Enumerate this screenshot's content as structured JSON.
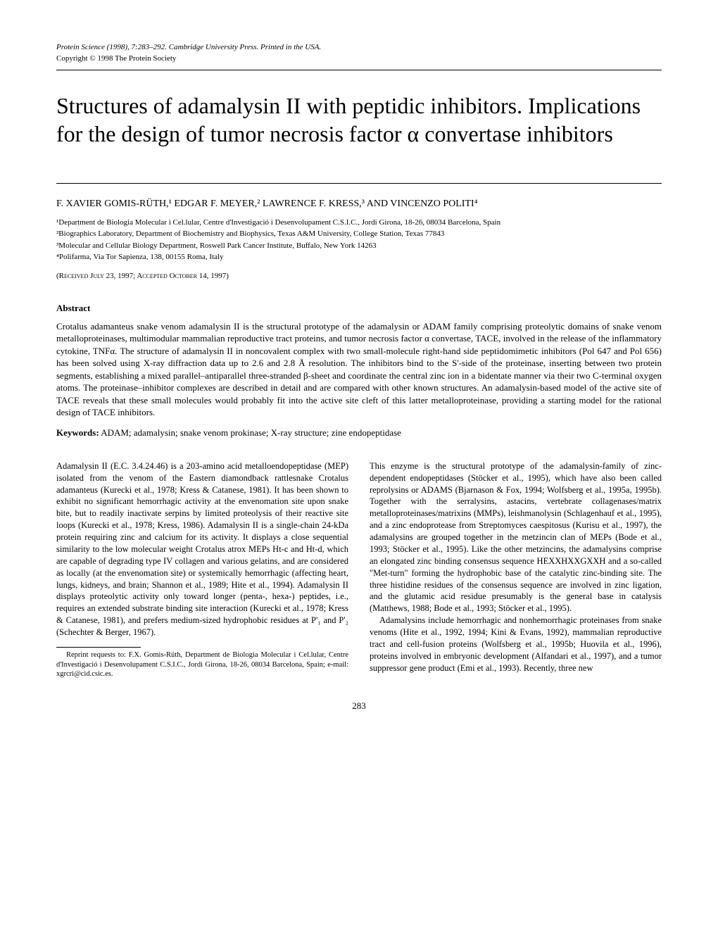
{
  "header": {
    "journal_line": "Protein Science (1998), 7:283–292. Cambridge University Press. Printed in the USA.",
    "copyright_line": "Copyright © 1998 The Protein Society"
  },
  "title": "Structures of adamalysin II with peptidic inhibitors. Implications for the design of tumor necrosis factor α convertase inhibitors",
  "authors_line": "F. XAVIER GOMIS-RÜTH,¹ EDGAR F. MEYER,² LAWRENCE F. KRESS,³ AND VINCENZO POLITI⁴",
  "affiliations": [
    "¹Department de Biologia Molecular i Cel.lular, Centre d'Investigació i Desenvolupament C.S.I.C., Jordi Girona, 18-26, 08034 Barcelona, Spain",
    "²Biographics Laboratory, Department of Biochemistry and Biophysics, Texas A&M University, College Station, Texas 77843",
    "³Molecular and Cellular Biology Department, Roswell Park Cancer Institute, Buffalo, New York 14263",
    "⁴Polifarma, Via Tor Sapienza, 138, 00155 Roma, Italy"
  ],
  "dates_line": "(Received July 23, 1997; Accepted October 14, 1997)",
  "abstract": {
    "heading": "Abstract",
    "text": "Crotalus adamanteus snake venom adamalysin II is the structural prototype of the adamalysin or ADAM family comprising proteolytic domains of snake venom metalloproteinases, multimodular mammalian reproductive tract proteins, and tumor necrosis factor α convertase, TACE, involved in the release of the inflammatory cytokine, TNFα. The structure of adamalysin II in noncovalent complex with two small-molecule right-hand side peptidomimetic inhibitors (Pol 647 and Pol 656) has been solved using X-ray diffraction data up to 2.6 and 2.8 Å resolution. The inhibitors bind to the S'-side of the proteinase, inserting between two protein segments, establishing a mixed parallel–antiparallel three-stranded β-sheet and coordinate the central zinc ion in a bidentate manner via their two C-terminal oxygen atoms. The proteinase–inhibitor complexes are described in detail and are compared with other known structures. An adamalysin-based model of the active site of TACE reveals that these small molecules would probably fit into the active site cleft of this latter metalloproteinase, providing a starting model for the rational design of TACE inhibitors."
  },
  "keywords": {
    "label": "Keywords:",
    "text": " ADAM; adamalysin; snake venom prokinase; X-ray structure; zine endopeptidase"
  },
  "body": {
    "left_paragraphs": [
      "Adamalysin II (E.C. 3.4.24.46) is a 203-amino acid metalloendopeptidase (MEP) isolated from the venom of the Eastern diamondback rattlesnake Crotalus adamanteus (Kurecki et al., 1978; Kress & Catanese, 1981). It has been shown to exhibit no significant hemorrhagic activity at the envenomation site upon snake bite, but to readily inactivate serpins by limited proteolysis of their reactive site loops (Kurecki et al., 1978; Kress, 1986). Adamalysin II is a single-chain 24-kDa protein requiring zinc and calcium for its activity. It displays a close sequential similarity to the low molecular weight Crotalus atrox MEPs Ht-c and Ht-d, which are capable of degrading type IV collagen and various gelatins, and are considered as locally (at the envenomation site) or systemically hemorrhagic (affecting heart, lungs, kidneys, and brain; Shannon et al., 1989; Hite et al., 1994). Adamalysin II displays proteolytic activity only toward longer (penta-, hexa-) peptides, i.e., requires an extended substrate binding site interaction (Kurecki et al., 1978; Kress & Catanese, 1981), and prefers medium-sized hydrophobic residues at P'₁ and P'₂ (Schechter & Berger, 1967)."
    ],
    "right_paragraphs": [
      "This enzyme is the structural prototype of the adamalysin-family of zinc-dependent endopeptidases (Stöcker et al., 1995), which have also been called reprolysins or ADAMS (Bjarnason & Fox, 1994; Wolfsberg et al., 1995a, 1995b). Together with the serralysins, astacins, vertebrate collagenases/matrix metalloproteinases/matrixins (MMPs), leishmanolysin (Schlagenhauf et al., 1995), and a zinc endoprotease from Streptomyces caespitosus (Kurisu et al., 1997), the adamalysins are grouped together in the metzincin clan of MEPs (Bode et al., 1993; Stöcker et al., 1995). Like the other metzincins, the adamalysins comprise an elongated zinc binding consensus sequence HEXXHXXGXXH and a so-called \"Met-turn\" forming the hydrophobic base of the catalytic zinc-binding site. The three histidine residues of the consensus sequence are involved in zinc ligation, and the glutamic acid residue presumably is the general base in catalysis (Matthews, 1988; Bode et al., 1993; Stöcker et al., 1995).",
      "Adamalysins include hemorrhagic and nonhemorrhagic proteinases from snake venoms (Hite et al., 1992, 1994; Kini & Evans, 1992), mammalian reproductive tract and cell-fusion proteins (Wolfsberg et al., 1995b; Huovila et al., 1996), proteins involved in embryonic development (Alfandari et al., 1997), and a tumor suppressor gene product (Emi et al., 1993). Recently, three new"
    ]
  },
  "footnote": "Reprint requests to: F.X. Gomis-Rüth, Department de Biologia Molecular i Cel.lular, Centre d'Investigació i Desenvolupament C.S.I.C., Jordi Girona, 18-26, 08034 Barcelona, Spain; e-mail: xgrcri@cid.csic.es.",
  "page_number": "283"
}
